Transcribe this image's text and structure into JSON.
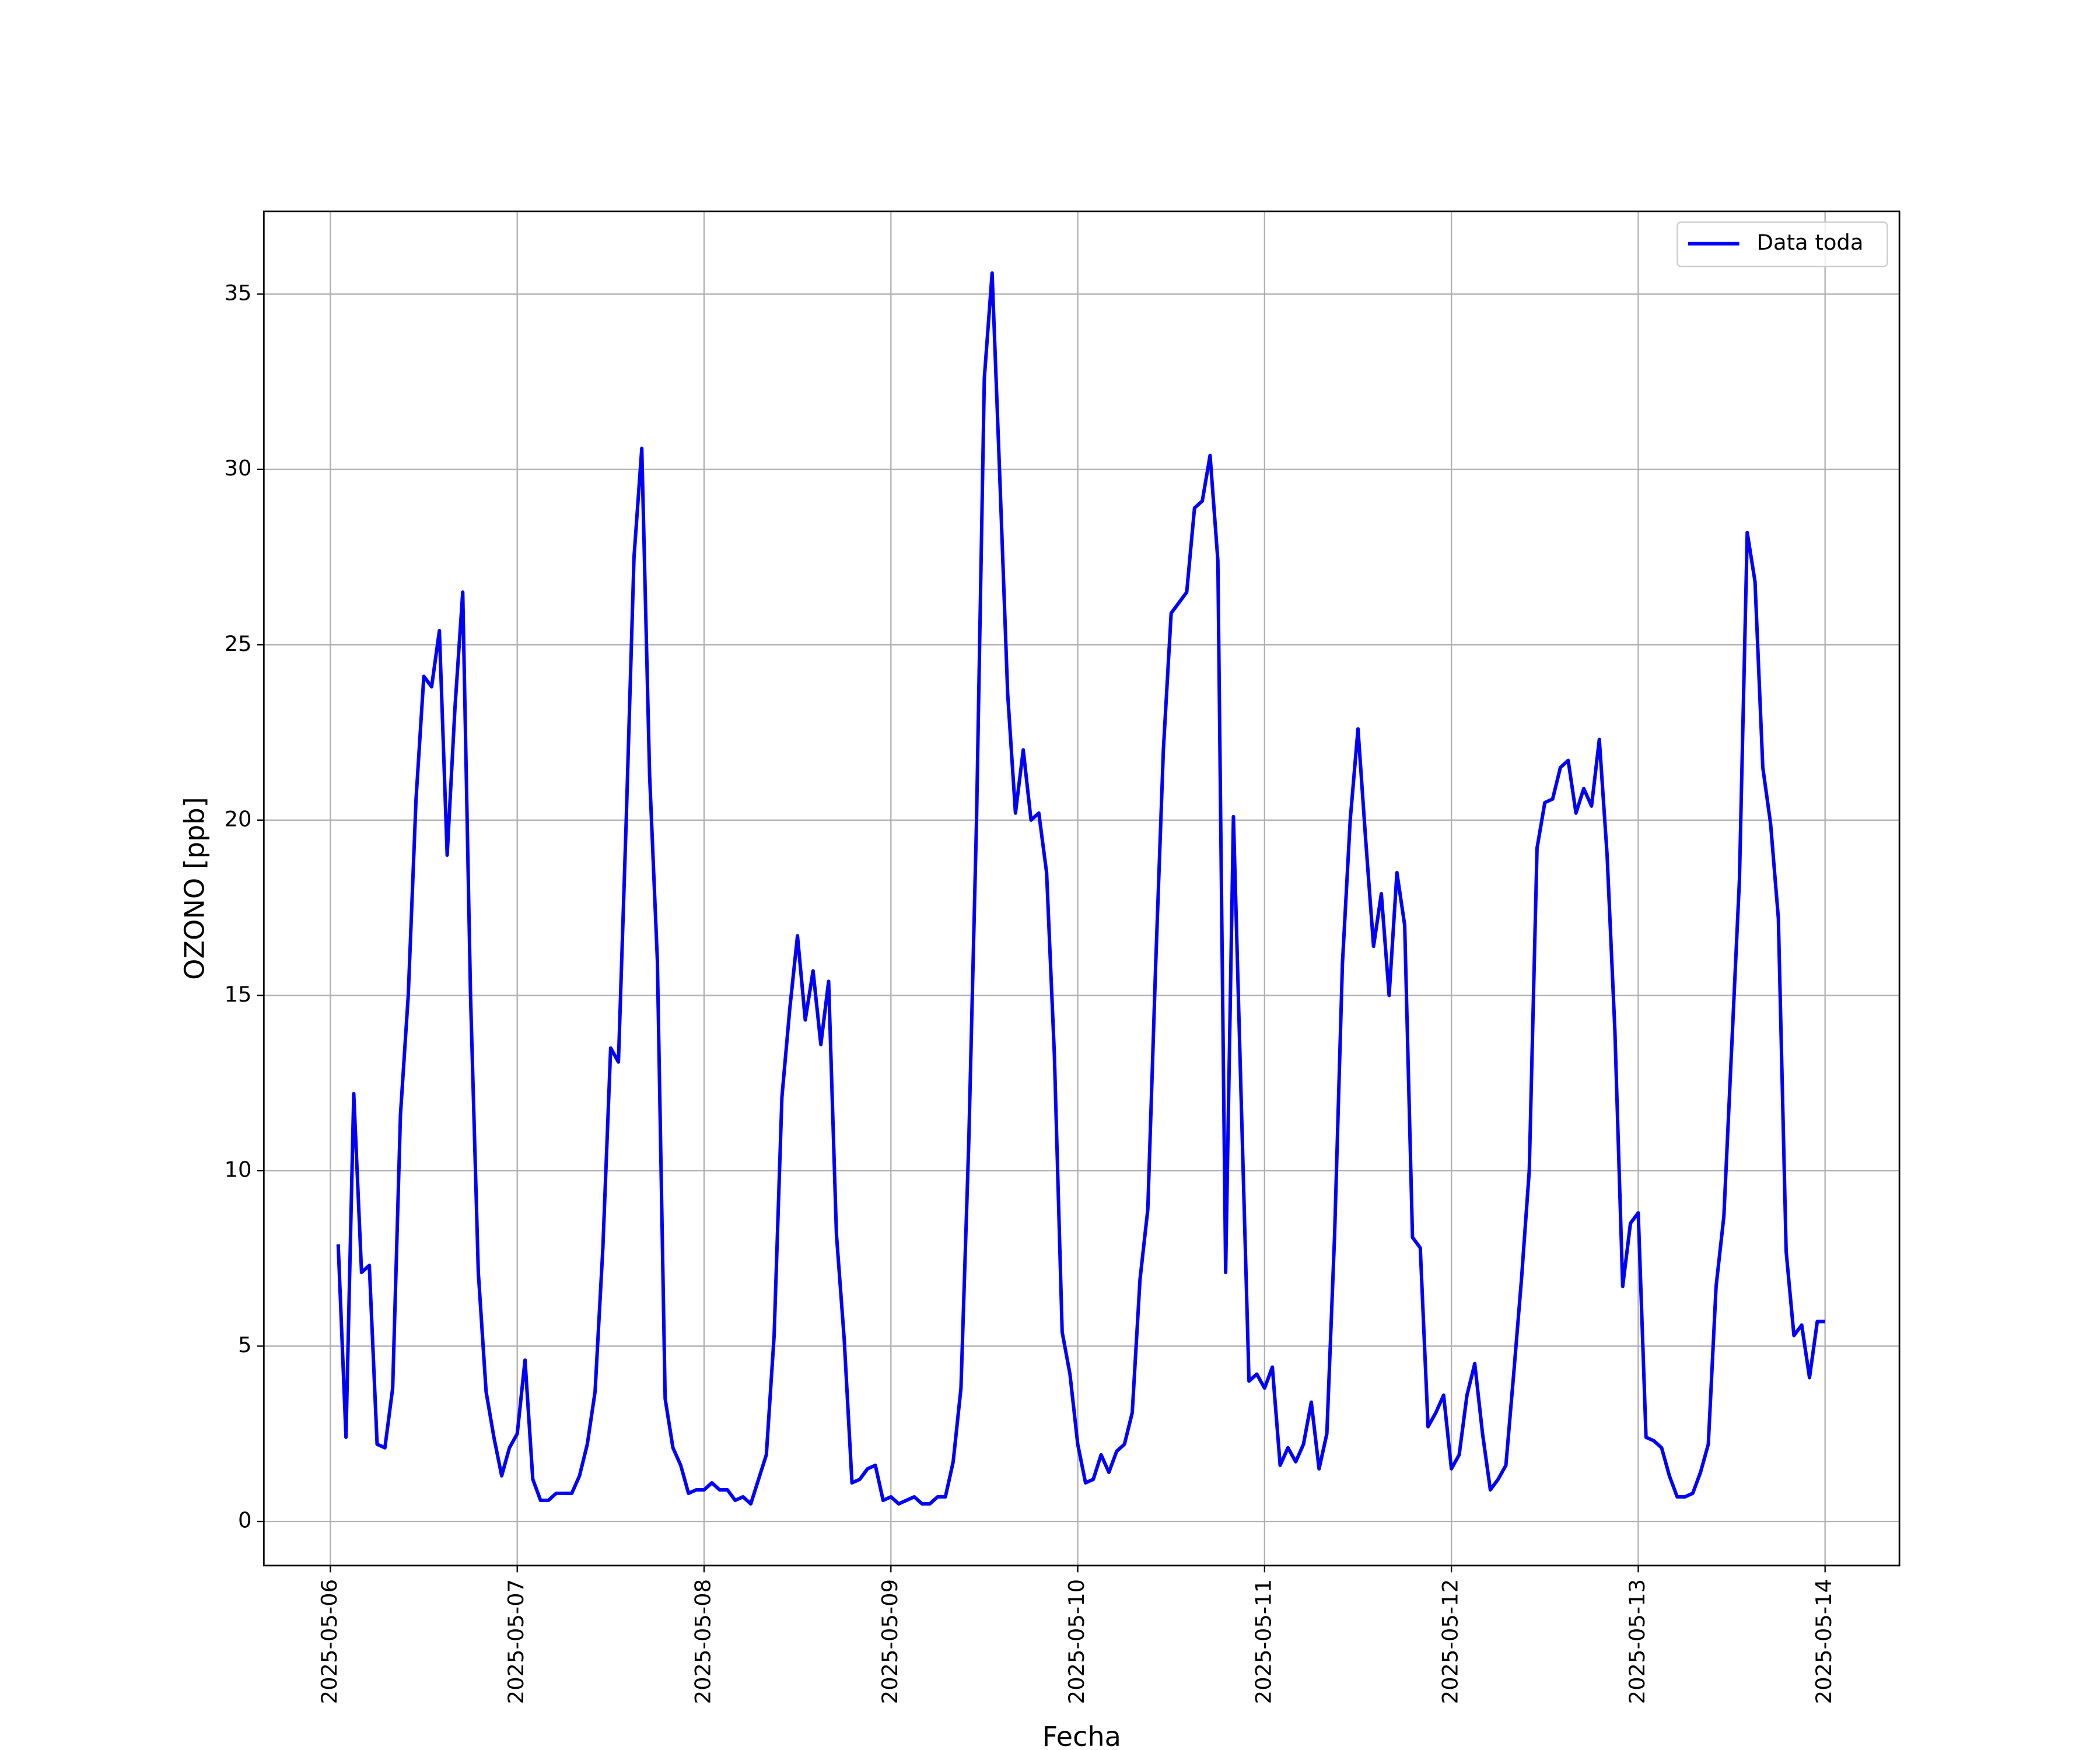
{
  "chart_data": {
    "type": "line",
    "x_label": "Fecha",
    "y_label": "OZONO [ppb]",
    "xlim": [
      "2025-05-05 15:27",
      "2025-05-14 09:33"
    ],
    "xticks": [
      "2025-05-06",
      "2025-05-07",
      "2025-05-08",
      "2025-05-09",
      "2025-05-10",
      "2025-05-11",
      "2025-05-12",
      "2025-05-13",
      "2025-05-14"
    ],
    "ylim": [
      -1.26,
      37.36
    ],
    "yticks": [
      0,
      5,
      10,
      15,
      20,
      25,
      30,
      35
    ],
    "grid": true,
    "legend": "upper right",
    "x": [
      "2025-05-06 01:00",
      "2025-05-06 02:00",
      "2025-05-06 03:00",
      "2025-05-06 04:00",
      "2025-05-06 05:00",
      "2025-05-06 06:00",
      "2025-05-06 07:00",
      "2025-05-06 08:00",
      "2025-05-06 09:00",
      "2025-05-06 10:00",
      "2025-05-06 11:00",
      "2025-05-06 12:00",
      "2025-05-06 13:00",
      "2025-05-06 14:00",
      "2025-05-06 15:00",
      "2025-05-06 16:00",
      "2025-05-06 17:00",
      "2025-05-06 18:00",
      "2025-05-06 19:00",
      "2025-05-06 20:00",
      "2025-05-06 21:00",
      "2025-05-06 22:00",
      "2025-05-06 23:00",
      "2025-05-07 00:00",
      "2025-05-07 01:00",
      "2025-05-07 02:00",
      "2025-05-07 03:00",
      "2025-05-07 04:00",
      "2025-05-07 05:00",
      "2025-05-07 06:00",
      "2025-05-07 07:00",
      "2025-05-07 08:00",
      "2025-05-07 09:00",
      "2025-05-07 10:00",
      "2025-05-07 11:00",
      "2025-05-07 12:00",
      "2025-05-07 13:00",
      "2025-05-07 14:00",
      "2025-05-07 15:00",
      "2025-05-07 16:00",
      "2025-05-07 17:00",
      "2025-05-07 18:00",
      "2025-05-07 19:00",
      "2025-05-07 20:00",
      "2025-05-07 21:00",
      "2025-05-07 22:00",
      "2025-05-07 23:00",
      "2025-05-08 00:00",
      "2025-05-08 01:00",
      "2025-05-08 02:00",
      "2025-05-08 03:00",
      "2025-05-08 04:00",
      "2025-05-08 05:00",
      "2025-05-08 06:00",
      "2025-05-08 07:00",
      "2025-05-08 08:00",
      "2025-05-08 09:00",
      "2025-05-08 10:00",
      "2025-05-08 11:00",
      "2025-05-08 12:00",
      "2025-05-08 13:00",
      "2025-05-08 14:00",
      "2025-05-08 15:00",
      "2025-05-08 16:00",
      "2025-05-08 17:00",
      "2025-05-08 18:00",
      "2025-05-08 19:00",
      "2025-05-08 20:00",
      "2025-05-08 21:00",
      "2025-05-08 22:00",
      "2025-05-08 23:00",
      "2025-05-09 00:00",
      "2025-05-09 01:00",
      "2025-05-09 02:00",
      "2025-05-09 03:00",
      "2025-05-09 04:00",
      "2025-05-09 05:00",
      "2025-05-09 06:00",
      "2025-05-09 07:00",
      "2025-05-09 08:00",
      "2025-05-09 09:00",
      "2025-05-09 10:00",
      "2025-05-09 11:00",
      "2025-05-09 12:00",
      "2025-05-09 13:00",
      "2025-05-09 14:00",
      "2025-05-09 15:00",
      "2025-05-09 16:00",
      "2025-05-09 17:00",
      "2025-05-09 18:00",
      "2025-05-09 19:00",
      "2025-05-09 20:00",
      "2025-05-09 21:00",
      "2025-05-09 22:00",
      "2025-05-09 23:00",
      "2025-05-10 00:00",
      "2025-05-10 01:00",
      "2025-05-10 02:00",
      "2025-05-10 03:00",
      "2025-05-10 04:00",
      "2025-05-10 05:00",
      "2025-05-10 06:00",
      "2025-05-10 07:00",
      "2025-05-10 08:00",
      "2025-05-10 09:00",
      "2025-05-10 10:00",
      "2025-05-10 11:00",
      "2025-05-10 12:00",
      "2025-05-10 13:00",
      "2025-05-10 14:00",
      "2025-05-10 15:00",
      "2025-05-10 16:00",
      "2025-05-10 17:00",
      "2025-05-10 18:00",
      "2025-05-10 19:00",
      "2025-05-10 20:00",
      "2025-05-10 21:00",
      "2025-05-10 22:00",
      "2025-05-10 23:00",
      "2025-05-11 00:00",
      "2025-05-11 01:00",
      "2025-05-11 02:00",
      "2025-05-11 03:00",
      "2025-05-11 04:00",
      "2025-05-11 05:00",
      "2025-05-11 06:00",
      "2025-05-11 07:00",
      "2025-05-11 08:00",
      "2025-05-11 09:00",
      "2025-05-11 10:00",
      "2025-05-11 11:00",
      "2025-05-11 12:00",
      "2025-05-11 13:00",
      "2025-05-11 14:00",
      "2025-05-11 15:00",
      "2025-05-11 16:00",
      "2025-05-11 17:00",
      "2025-05-11 18:00",
      "2025-05-11 19:00",
      "2025-05-11 20:00",
      "2025-05-11 21:00",
      "2025-05-11 22:00",
      "2025-05-11 23:00",
      "2025-05-12 00:00",
      "2025-05-12 01:00",
      "2025-05-12 02:00",
      "2025-05-12 03:00",
      "2025-05-12 04:00",
      "2025-05-12 05:00",
      "2025-05-12 06:00",
      "2025-05-12 07:00",
      "2025-05-12 08:00",
      "2025-05-12 09:00",
      "2025-05-12 10:00",
      "2025-05-12 11:00",
      "2025-05-12 12:00",
      "2025-05-12 13:00",
      "2025-05-12 14:00",
      "2025-05-12 15:00",
      "2025-05-12 16:00",
      "2025-05-12 17:00",
      "2025-05-12 18:00",
      "2025-05-12 19:00",
      "2025-05-12 20:00",
      "2025-05-12 21:00",
      "2025-05-12 22:00",
      "2025-05-12 23:00",
      "2025-05-13 00:00",
      "2025-05-13 01:00",
      "2025-05-13 02:00",
      "2025-05-13 03:00",
      "2025-05-13 04:00",
      "2025-05-13 05:00",
      "2025-05-13 06:00",
      "2025-05-13 07:00",
      "2025-05-13 08:00",
      "2025-05-13 09:00",
      "2025-05-13 10:00",
      "2025-05-13 11:00",
      "2025-05-13 12:00",
      "2025-05-13 13:00",
      "2025-05-13 14:00",
      "2025-05-13 15:00",
      "2025-05-13 16:00",
      "2025-05-13 17:00",
      "2025-05-13 18:00",
      "2025-05-13 19:00",
      "2025-05-13 20:00",
      "2025-05-13 21:00",
      "2025-05-13 22:00",
      "2025-05-13 23:00",
      "2025-05-14 00:00"
    ],
    "series": [
      {
        "name": "Data toda",
        "color": "#0000ff",
        "values": [
          7.9,
          2.4,
          12.2,
          7.1,
          7.3,
          2.2,
          2.1,
          3.8,
          11.6,
          15.0,
          20.6,
          24.1,
          23.8,
          25.4,
          19.0,
          23.2,
          26.5,
          15.0,
          7.1,
          3.7,
          2.4,
          1.3,
          2.1,
          2.5,
          4.6,
          1.2,
          0.6,
          0.6,
          0.8,
          0.8,
          0.8,
          1.3,
          2.2,
          3.7,
          7.8,
          13.5,
          13.1,
          20.0,
          27.5,
          30.6,
          21.3,
          16.0,
          3.5,
          2.1,
          1.6,
          0.8,
          0.9,
          0.9,
          1.1,
          0.9,
          0.9,
          0.6,
          0.7,
          0.5,
          1.2,
          1.9,
          5.3,
          12.1,
          14.6,
          16.7,
          14.3,
          15.7,
          13.6,
          15.4,
          8.2,
          5.2,
          1.1,
          1.2,
          1.5,
          1.6,
          0.6,
          0.7,
          0.5,
          0.6,
          0.7,
          0.5,
          0.5,
          0.7,
          0.7,
          1.7,
          3.8,
          10.8,
          20.0,
          32.6,
          35.6,
          29.7,
          23.6,
          20.2,
          22.0,
          20.0,
          20.2,
          18.5,
          13.3,
          5.4,
          4.2,
          2.2,
          1.1,
          1.2,
          1.9,
          1.4,
          2.0,
          2.2,
          3.1,
          6.9,
          8.9,
          15.8,
          22.0,
          25.9,
          26.2,
          26.5,
          28.9,
          29.1,
          30.4,
          27.4,
          7.1,
          20.1,
          12.0,
          4.0,
          4.2,
          3.8,
          4.4,
          1.6,
          2.1,
          1.7,
          2.2,
          3.4,
          1.5,
          2.5,
          8.2,
          15.9,
          20.0,
          22.6,
          19.4,
          16.4,
          17.9,
          15.0,
          18.5,
          17.0,
          8.1,
          7.8,
          2.7,
          3.1,
          3.6,
          1.5,
          1.9,
          3.6,
          4.5,
          2.5,
          0.9,
          1.2,
          1.6,
          4.2,
          6.9,
          10.0,
          19.2,
          20.5,
          20.6,
          21.5,
          21.7,
          20.2,
          20.9,
          20.4,
          22.3,
          19.0,
          14.0,
          6.7,
          8.5,
          8.8,
          2.4,
          2.3,
          2.1,
          1.3,
          0.7,
          0.7,
          0.8,
          1.4,
          2.2,
          6.7,
          8.7,
          13.5,
          18.3,
          28.2,
          26.8,
          21.5,
          19.9,
          17.2,
          7.7,
          5.3,
          5.6,
          4.1,
          5.7,
          5.7
        ]
      }
    ]
  }
}
